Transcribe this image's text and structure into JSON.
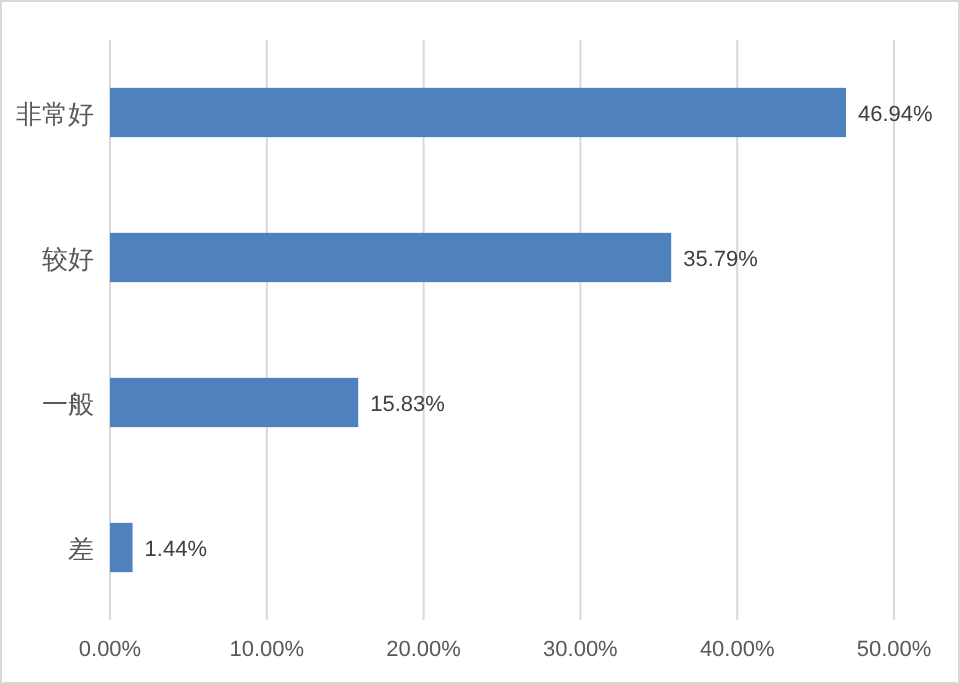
{
  "chart_data": {
    "type": "bar",
    "orientation": "horizontal",
    "categories": [
      "非常好",
      "较好",
      "一般",
      "差"
    ],
    "values": [
      46.94,
      35.79,
      15.83,
      1.44
    ],
    "color": "#4f81bd",
    "value_labels": [
      "46.94%",
      "35.79%",
      "15.83%",
      "1.44%"
    ],
    "xlim": [
      0,
      50
    ],
    "xticks": [
      {
        "value": 0,
        "label": "0.00%"
      },
      {
        "value": 10,
        "label": "10.00%"
      },
      {
        "value": 20,
        "label": "20.00%"
      },
      {
        "value": 30,
        "label": "30.00%"
      },
      {
        "value": 40,
        "label": "40.00%"
      },
      {
        "value": 50,
        "label": "50.00%"
      }
    ],
    "grid": "x"
  }
}
